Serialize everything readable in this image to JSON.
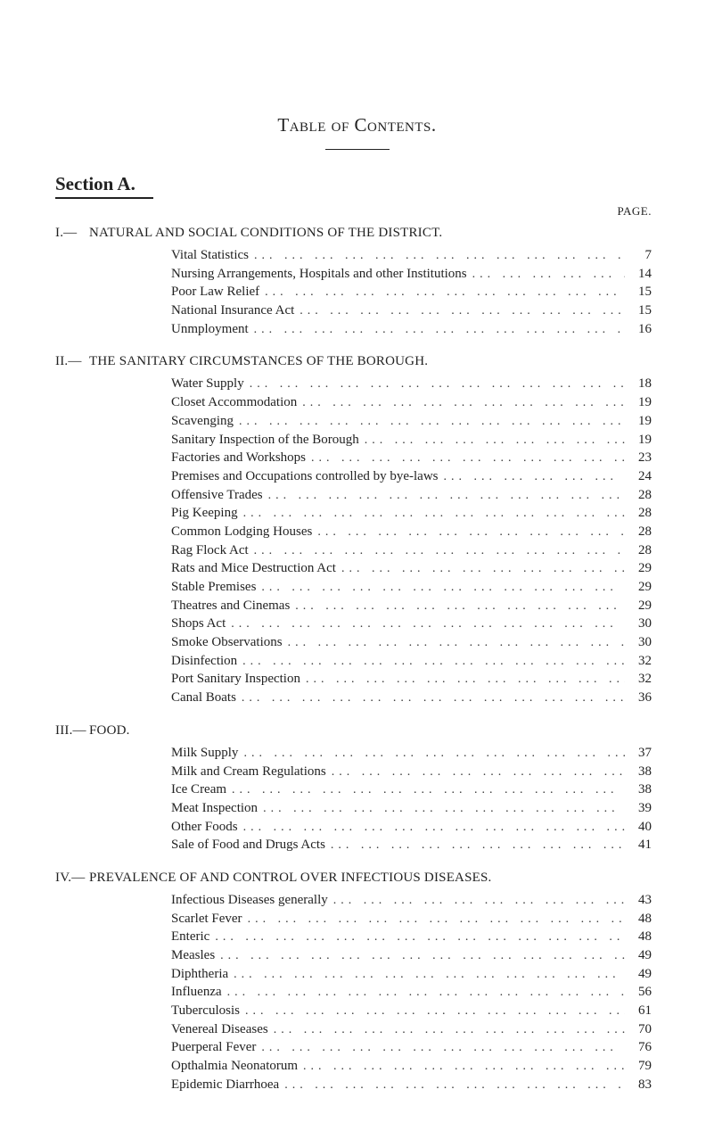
{
  "title": "Table of Contents.",
  "section_label": "Section A.",
  "page_label": "PAGE.",
  "dot": "...",
  "sections": [
    {
      "num": "I.—",
      "head": "NATURAL AND SOCIAL CONDITIONS OF THE DISTRICT.",
      "entries": [
        {
          "label": "Vital Statistics",
          "page": "7"
        },
        {
          "label": "Nursing Arrangements, Hospitals and other Institutions",
          "page": "14"
        },
        {
          "label": "Poor Law Relief",
          "page": "15"
        },
        {
          "label": "National Insurance Act",
          "page": "15"
        },
        {
          "label": "Unmployment",
          "page": "16"
        }
      ]
    },
    {
      "num": "II.—",
      "head": "THE SANITARY CIRCUMSTANCES OF THE BOROUGH.",
      "entries": [
        {
          "label": "Water Supply",
          "page": "18"
        },
        {
          "label": "Closet Accommodation",
          "page": "19"
        },
        {
          "label": "Scavenging",
          "page": "19"
        },
        {
          "label": "Sanitary Inspection of the Borough",
          "page": "19"
        },
        {
          "label": "Factories and Workshops",
          "page": "23"
        },
        {
          "label": "Premises and Occupations controlled by bye-laws",
          "page": "24"
        },
        {
          "label": "Offensive Trades",
          "page": "28"
        },
        {
          "label": "Pig Keeping",
          "page": "28"
        },
        {
          "label": "Common Lodging Houses",
          "page": "28"
        },
        {
          "label": "Rag Flock Act",
          "page": "28"
        },
        {
          "label": "Rats and Mice Destruction Act",
          "page": "29"
        },
        {
          "label": "Stable Premises",
          "page": "29"
        },
        {
          "label": "Theatres and Cinemas",
          "page": "29"
        },
        {
          "label": "Shops Act",
          "page": "30"
        },
        {
          "label": "Smoke Observations",
          "page": "30"
        },
        {
          "label": "Disinfection",
          "page": "32"
        },
        {
          "label": "Port Sanitary Inspection",
          "page": "32"
        },
        {
          "label": "Canal Boats",
          "page": "36"
        }
      ]
    },
    {
      "num": "III.—",
      "head": "FOOD.",
      "entries": [
        {
          "label": "Milk Supply",
          "page": "37"
        },
        {
          "label": "Milk and Cream Regulations",
          "page": "38"
        },
        {
          "label": "Ice Cream",
          "page": "38"
        },
        {
          "label": "Meat Inspection",
          "page": "39"
        },
        {
          "label": "Other Foods",
          "page": "40"
        },
        {
          "label": "Sale of Food and Drugs Acts",
          "page": "41"
        }
      ]
    },
    {
      "num": "IV.—",
      "head": "PREVALENCE OF AND CONTROL OVER INFECTIOUS DISEASES.",
      "entries": [
        {
          "label": "Infectious Diseases generally",
          "page": "43"
        },
        {
          "label": "Scarlet Fever",
          "page": "48"
        },
        {
          "label": "Enteric",
          "page": "48"
        },
        {
          "label": "Measles",
          "page": "49"
        },
        {
          "label": "Diphtheria",
          "page": "49"
        },
        {
          "label": "Influenza",
          "page": "56"
        },
        {
          "label": "Tuberculosis",
          "page": "61"
        },
        {
          "label": "Venereal Diseases",
          "page": "70"
        },
        {
          "label": "Puerperal Fever",
          "page": "76"
        },
        {
          "label": "Opthalmia Neonatorum",
          "page": "79"
        },
        {
          "label": "Epidemic Diarrhoea",
          "page": "83"
        }
      ]
    }
  ]
}
